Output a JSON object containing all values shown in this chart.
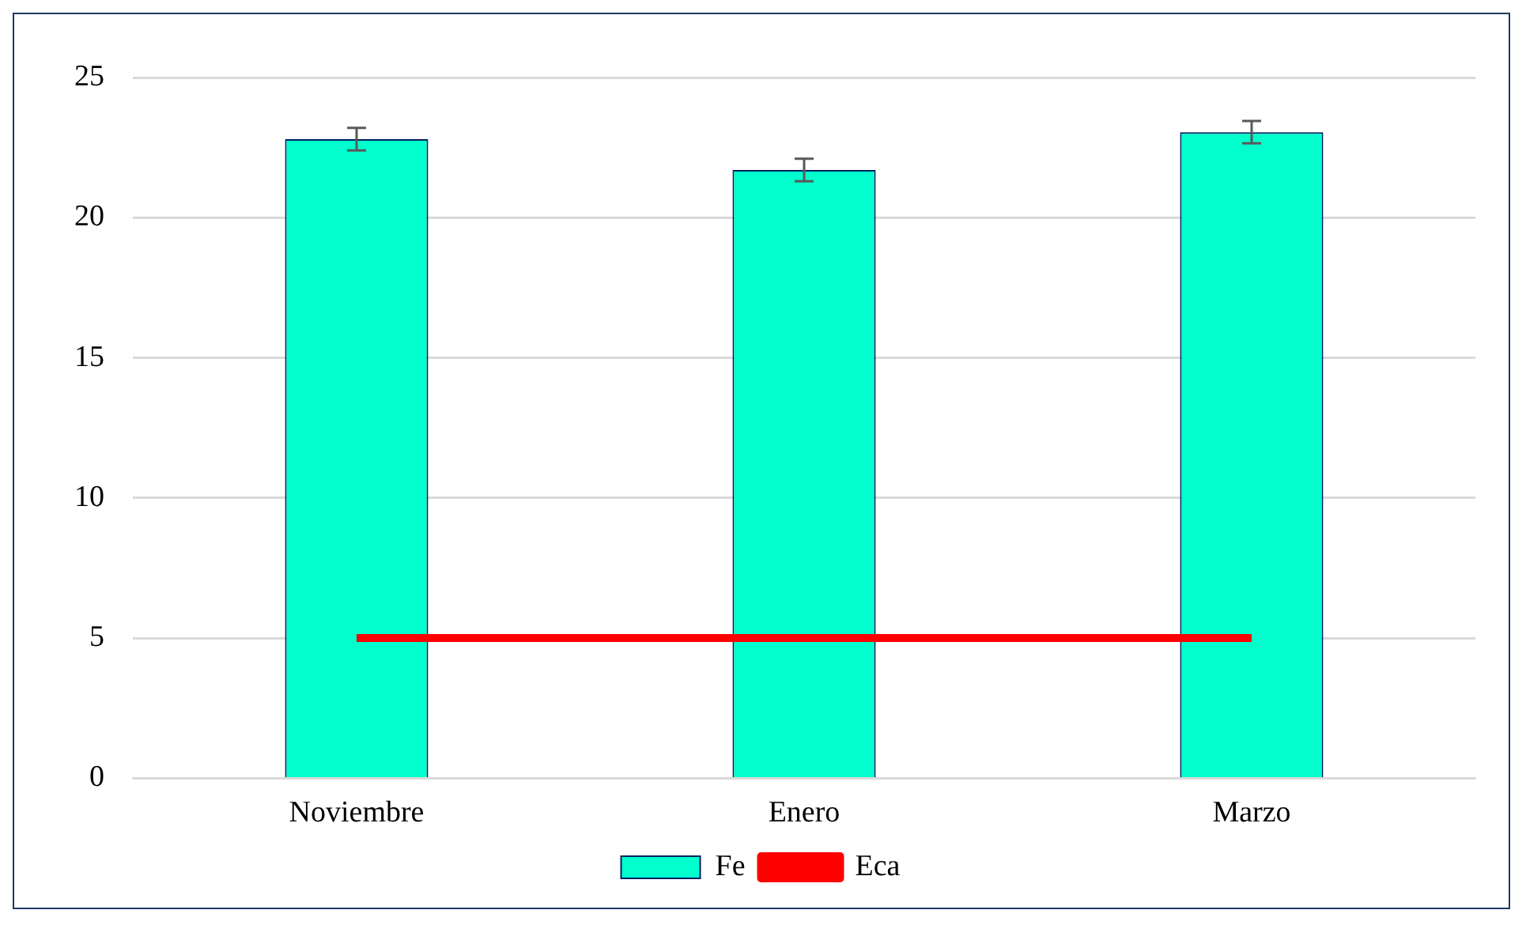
{
  "chart_data": {
    "type": "bar",
    "categories": [
      "Noviembre",
      "Enero",
      "Marzo"
    ],
    "series": [
      {
        "name": "Fe",
        "color": "#00ffcc",
        "values": [
          22.8,
          21.7,
          23.05
        ],
        "errors": [
          0.4,
          0.4,
          0.4
        ]
      },
      {
        "name": "Eca",
        "type": "line",
        "color": "#ff0000",
        "values": [
          5,
          5,
          5
        ]
      }
    ],
    "ylim": [
      0,
      25
    ],
    "yticks": [
      0,
      5,
      10,
      15,
      20,
      25
    ],
    "grid": "y",
    "legend": "bottom",
    "marker": "none"
  }
}
